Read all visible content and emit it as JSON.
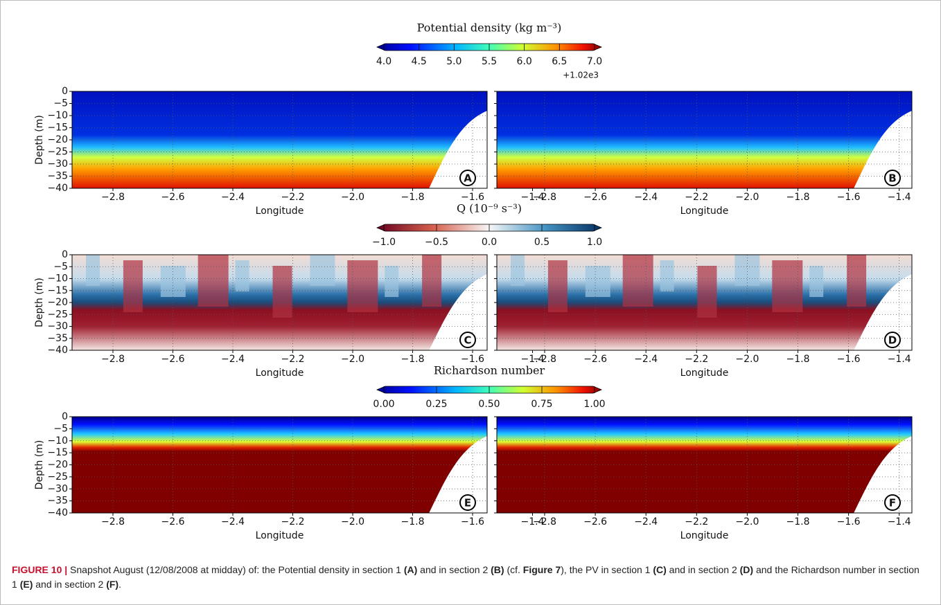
{
  "colorbars": [
    {
      "title": "Potential density (kg m⁻³)",
      "ticks": [
        "4.0",
        "4.5",
        "5.0",
        "5.5",
        "6.0",
        "6.5",
        "7.0"
      ],
      "offset": "+1.02e3"
    },
    {
      "title": "Q (10⁻⁹ s⁻³)",
      "ticks": [
        "−1.0",
        "−0.5",
        "0.0",
        "0.5",
        "1.0"
      ]
    },
    {
      "title": "Richardson number",
      "ticks": [
        "0.00",
        "0.25",
        "0.50",
        "0.75",
        "1.00"
      ]
    }
  ],
  "panels": [
    {
      "label": "A",
      "ylabel": "Depth (m)",
      "yticks": [
        "0",
        "−5",
        "−10",
        "−15",
        "−20",
        "−25",
        "−30",
        "−35",
        "−40"
      ],
      "xlabel": "Longitude",
      "xticks": [
        "−2.8",
        "−2.6",
        "−2.4",
        "−2.2",
        "−2.0",
        "−1.8",
        "−1.6",
        "−1.4"
      ]
    },
    {
      "label": "B",
      "xlabel": "Longitude",
      "xticks": [
        "−2.8",
        "−2.6",
        "−2.4",
        "−2.2",
        "−2.0",
        "−1.8",
        "−1.6",
        "−1.4"
      ]
    },
    {
      "label": "C",
      "ylabel": "Depth (m)",
      "yticks": [
        "0",
        "−5",
        "−10",
        "−15",
        "−20",
        "−25",
        "−30",
        "−35",
        "−40"
      ],
      "xlabel": "Longitude",
      "xticks": [
        "−2.8",
        "−2.6",
        "−2.4",
        "−2.2",
        "−2.0",
        "−1.8",
        "−1.6",
        "−1.4"
      ]
    },
    {
      "label": "D",
      "xlabel": "Longitude",
      "xticks": [
        "−2.8",
        "−2.6",
        "−2.4",
        "−2.2",
        "−2.0",
        "−1.8",
        "−1.6",
        "−1.4"
      ]
    },
    {
      "label": "E",
      "ylabel": "Depth (m)",
      "yticks": [
        "0",
        "−5",
        "−10",
        "−15",
        "−20",
        "−25",
        "−30",
        "−35",
        "−40"
      ],
      "xlabel": "Longitude",
      "xticks": [
        "−2.8",
        "−2.6",
        "−2.4",
        "−2.2",
        "−2.0",
        "−1.8",
        "−1.6",
        "−1.4"
      ]
    },
    {
      "label": "F",
      "xlabel": "Longitude",
      "xticks": [
        "−2.8",
        "−2.6",
        "−2.4",
        "−2.2",
        "−2.0",
        "−1.8",
        "−1.6",
        "−1.4"
      ]
    }
  ],
  "caption": {
    "label": "FIGURE 10 |",
    "parts": [
      " Snapshot August (12/08/2008 at midday) of: the Potential density in section 1 ",
      "(A)",
      " and in section 2 ",
      "(B)",
      " (cf. ",
      "Figure 7",
      "), the PV in section 1 ",
      "(C)",
      " and in section 2 ",
      "(D)",
      " and the Richardson number in section 1 ",
      "(E)",
      " and in section 2 ",
      "(F)",
      "."
    ]
  }
}
